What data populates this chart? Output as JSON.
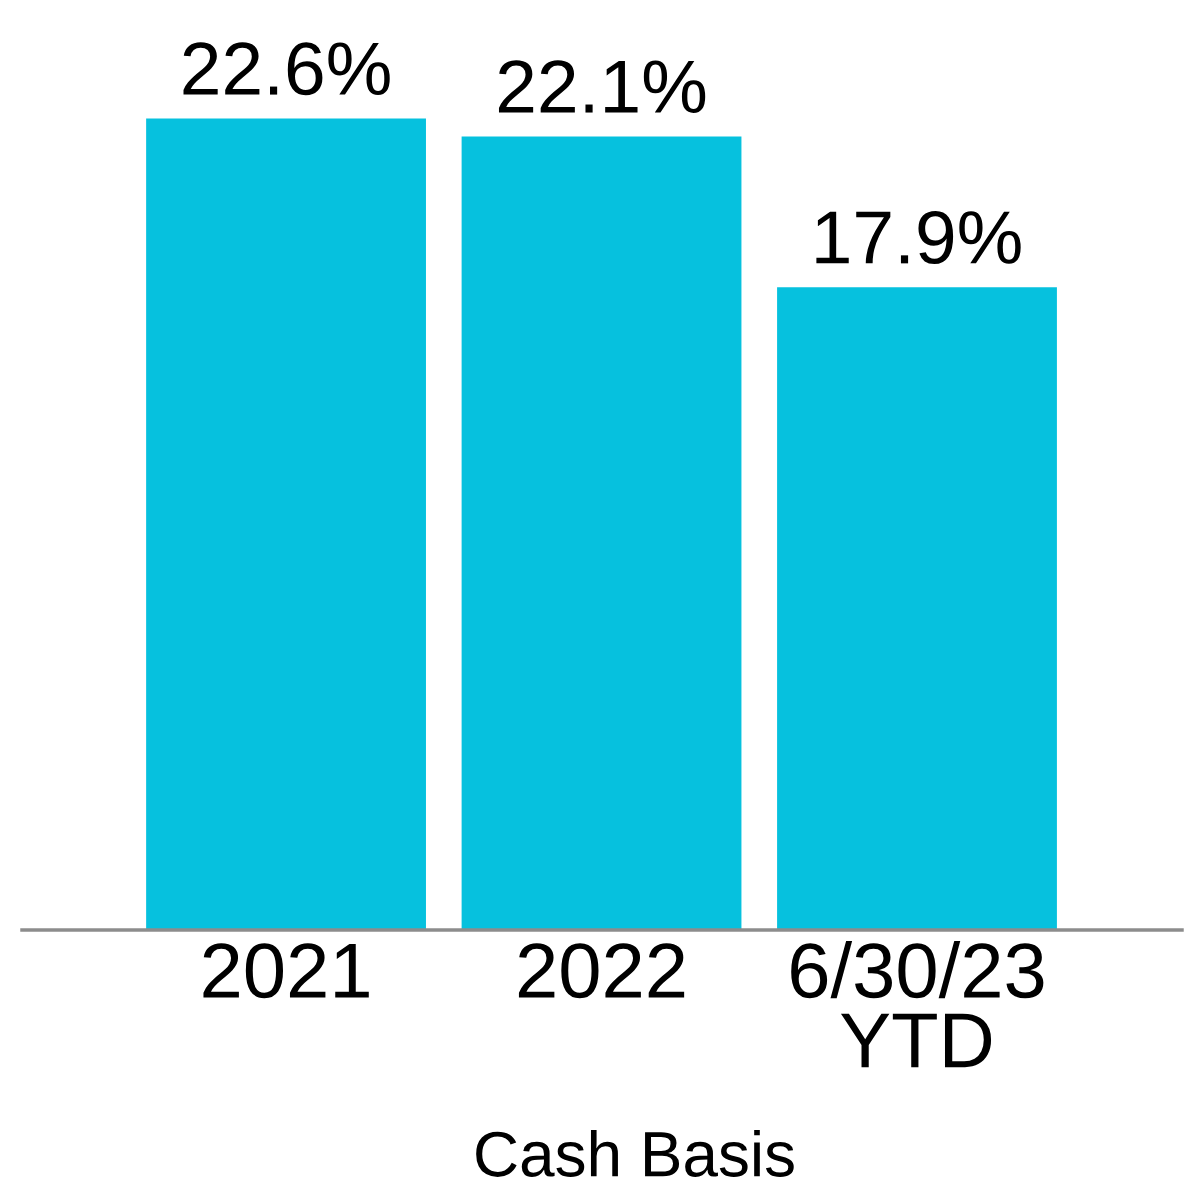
{
  "chart_data": {
    "type": "bar",
    "categories": [
      "2021",
      "2022",
      "6/30/23\nYTD"
    ],
    "xlabel": "Cash Basis",
    "series": [
      {
        "color": "#06c1de",
        "values": [
          22.6,
          22.1,
          17.9
        ],
        "value_labels": [
          "22.6%",
          "22.1%",
          "17.9%"
        ]
      }
    ],
    "grid": false,
    "legend": false
  }
}
